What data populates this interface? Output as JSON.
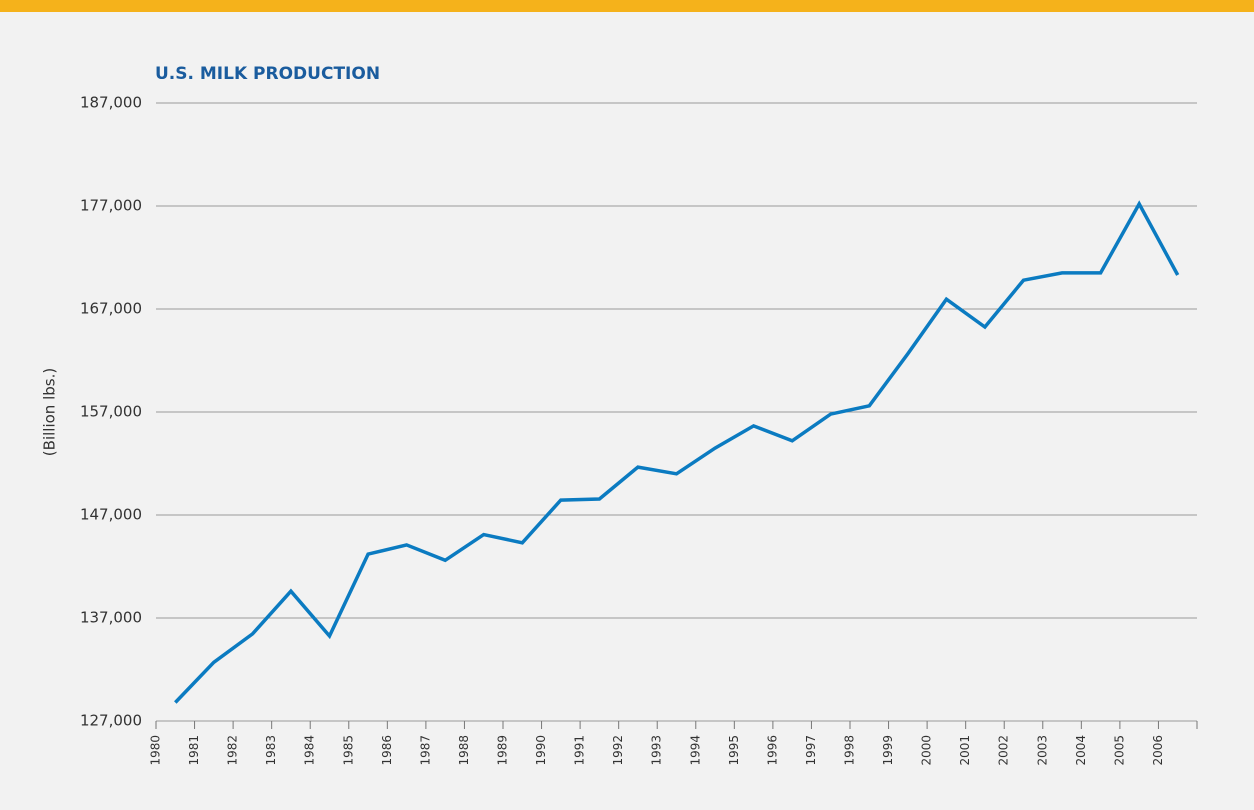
{
  "chart_data": {
    "type": "line",
    "title": "U.S. MILK PRODUCTION",
    "y_label": "(Billion lbs.)",
    "categories": [
      "1980",
      "1981",
      "1982",
      "1983",
      "1984",
      "1985",
      "1986",
      "1987",
      "1988",
      "1989",
      "1990",
      "1991",
      "1992",
      "1993",
      "1994",
      "1995",
      "1996",
      "1997",
      "1998",
      "1999",
      "2000",
      "2001",
      "2002",
      "2003",
      "2004",
      "2005",
      "2006"
    ],
    "series": [
      {
        "name": "U.S. milk production",
        "color": "#0b7bc1",
        "values": [
          128800,
          132700,
          135450,
          139600,
          135250,
          143200,
          144100,
          142600,
          145100,
          144300,
          148450,
          148550,
          151650,
          151000,
          153500,
          155650,
          154200,
          156800,
          157600,
          162650,
          167950,
          165250,
          169800,
          170500,
          170500,
          177200,
          170300
        ]
      }
    ],
    "ylim": [
      127000,
      187000
    ],
    "yticks": [
      {
        "value": 127000,
        "label": "127,000"
      },
      {
        "value": 137000,
        "label": "137,000"
      },
      {
        "value": 147000,
        "label": "147,000"
      },
      {
        "value": 157000,
        "label": "157,000"
      },
      {
        "value": 167000,
        "label": "167,000"
      },
      {
        "value": 177000,
        "label": "177,000"
      },
      {
        "value": 187000,
        "label": "187,000"
      }
    ],
    "grid": true
  }
}
